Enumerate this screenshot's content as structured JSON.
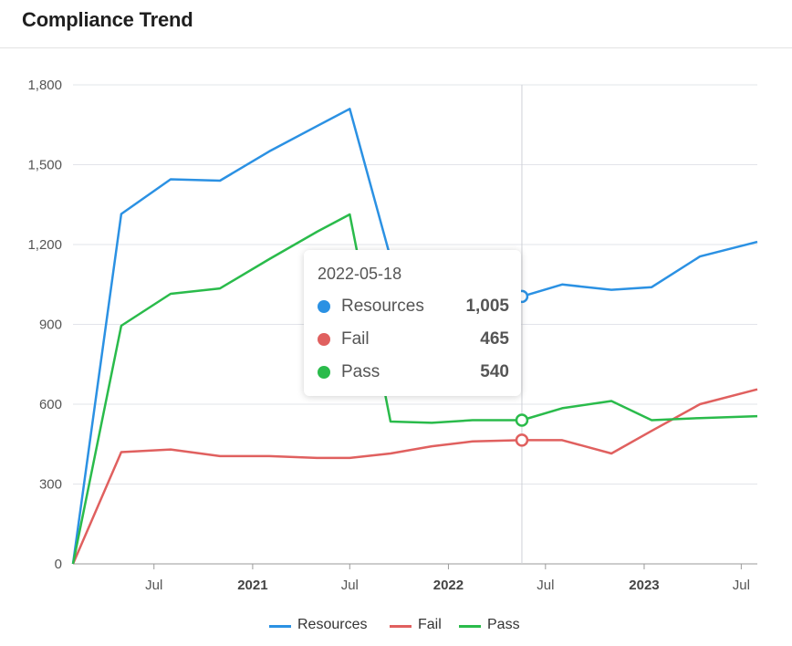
{
  "card": {
    "title": "Compliance Trend"
  },
  "chart_data": {
    "type": "line",
    "x_tick_labels": [
      "Jul",
      "2021",
      "Jul",
      "2022",
      "Jul",
      "2023",
      "Jul"
    ],
    "y_tick_labels": [
      "0",
      "300",
      "600",
      "900",
      "1,200",
      "1,500",
      "1,800"
    ],
    "ylim": [
      0,
      1800
    ],
    "xlim": [
      "2020-02-01",
      "2023-07-31"
    ],
    "grid": true,
    "legend_position": "bottom",
    "x": [
      "2020-02-01",
      "2020-05-01",
      "2020-08-01",
      "2020-11-01",
      "2021-02-01",
      "2021-05-01",
      "2021-07-01",
      "2021-09-15",
      "2021-12-01",
      "2022-02-15",
      "2022-05-18",
      "2022-08-01",
      "2022-11-01",
      "2023-01-15",
      "2023-04-15",
      "2023-07-31"
    ],
    "series": [
      {
        "name": "Resources",
        "color": "#2b91e3",
        "values": [
          0,
          1315,
          1445,
          1440,
          1550,
          1645,
          1710,
          1150,
          null,
          null,
          1005,
          1050,
          1030,
          1040,
          1155,
          1210
        ]
      },
      {
        "name": "Fail",
        "color": "#e0605f",
        "values": [
          0,
          420,
          430,
          405,
          405,
          398,
          398,
          415,
          442,
          460,
          465,
          465,
          415,
          500,
          600,
          656
        ]
      },
      {
        "name": "Pass",
        "color": "#2abb4b",
        "values": [
          0,
          895,
          1015,
          1035,
          1145,
          1248,
          1313,
          535,
          530,
          540,
          540,
          585,
          612,
          540,
          548,
          555
        ]
      }
    ]
  },
  "tooltip": {
    "date": "2022-05-18",
    "rows": [
      {
        "label": "Resources",
        "value": "1,005",
        "color": "#2b91e3"
      },
      {
        "label": "Fail",
        "value": "465",
        "color": "#e0605f"
      },
      {
        "label": "Pass",
        "value": "540",
        "color": "#2abb4b"
      }
    ]
  },
  "legend": [
    {
      "label": "Resources",
      "color": "#2b91e3"
    },
    {
      "label": "Fail",
      "color": "#e0605f"
    },
    {
      "label": "Pass",
      "color": "#2abb4b"
    }
  ]
}
